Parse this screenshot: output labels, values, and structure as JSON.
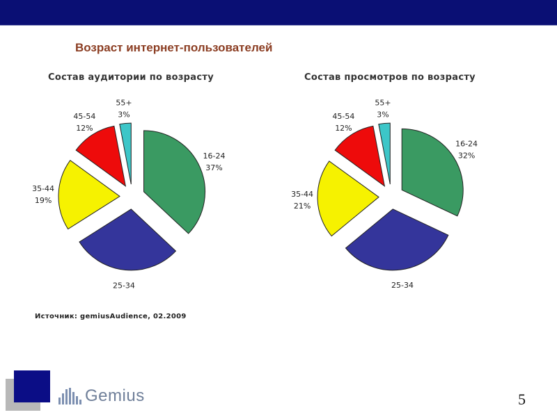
{
  "slide": {
    "title": "Возраст интернет-пользователей",
    "source": "Источник: gemiusAudience, 02.2009",
    "page_number": "5"
  },
  "logo": {
    "text": "Gemius"
  },
  "colors": {
    "header_bar": "#0a0f74",
    "title_text": "#8b3d22",
    "slice_16_24": "#3a9a62",
    "slice_25_34": "#34359b",
    "slice_35_44": "#f6f200",
    "slice_45_54": "#ee0b0b",
    "slice_55_plus": "#3cc6c8"
  },
  "chart_data": [
    {
      "type": "pie",
      "title": "Состав аудитории по возрасту",
      "slices": [
        {
          "label": "16-24",
          "value": 37,
          "value_label": "37%",
          "color": "#3a9a62"
        },
        {
          "label": "25-34",
          "value": 29,
          "value_label": "",
          "color": "#34359b"
        },
        {
          "label": "35-44",
          "value": 19,
          "value_label": "19%",
          "color": "#f6f200"
        },
        {
          "label": "45-54",
          "value": 12,
          "value_label": "12%",
          "color": "#ee0b0b"
        },
        {
          "label": "55+",
          "value": 3,
          "value_label": "3%",
          "color": "#3cc6c8"
        }
      ]
    },
    {
      "type": "pie",
      "title": "Состав просмотров по возрасту",
      "slices": [
        {
          "label": "16-24",
          "value": 32,
          "value_label": "32%",
          "color": "#3a9a62"
        },
        {
          "label": "25-34",
          "value": 32,
          "value_label": "",
          "color": "#34359b"
        },
        {
          "label": "35-44",
          "value": 21,
          "value_label": "21%",
          "color": "#f6f200"
        },
        {
          "label": "45-54",
          "value": 12,
          "value_label": "12%",
          "color": "#ee0b0b"
        },
        {
          "label": "55+",
          "value": 3,
          "value_label": "3%",
          "color": "#3cc6c8"
        }
      ]
    }
  ]
}
